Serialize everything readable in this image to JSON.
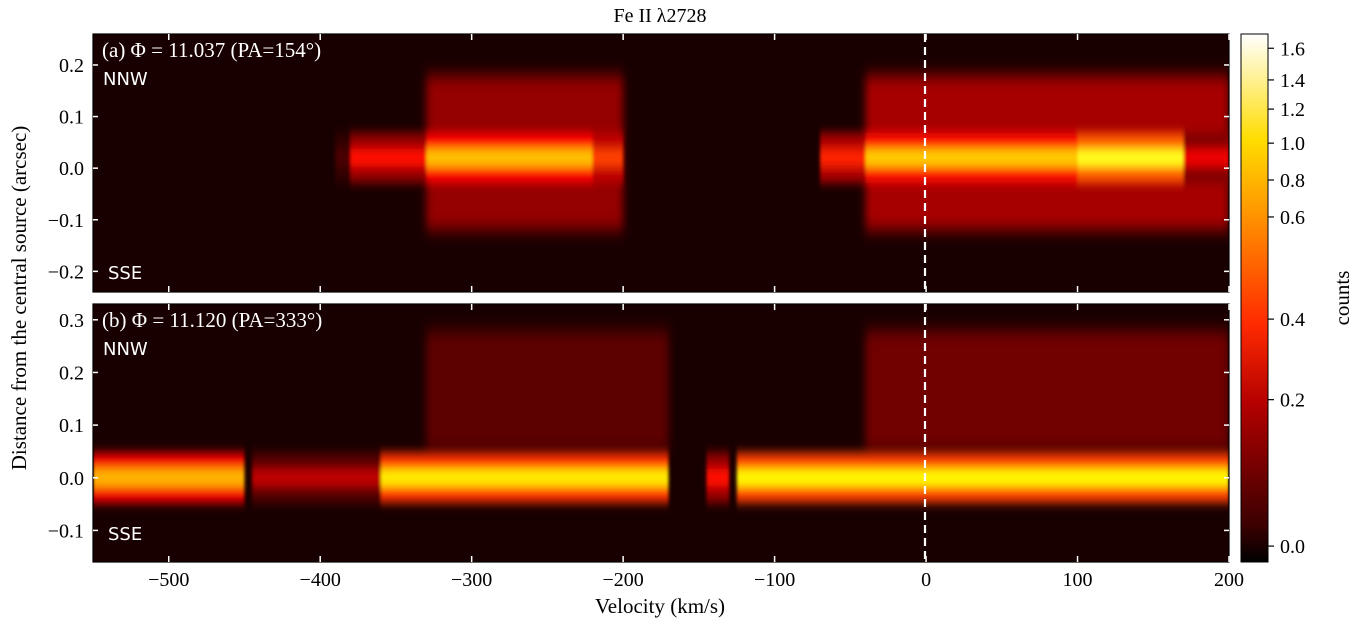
{
  "chart_data": {
    "type": "heatmap",
    "title": "Fe II λ2728",
    "xlabel": "Velocity (km/s)",
    "ylabel": "Distance from the central source (arcsec)",
    "colorbar_label": "counts",
    "colormap": "hot",
    "colorbar_ticks": [
      "0.0",
      "0.2",
      "0.4",
      "0.6",
      "0.8",
      "1.0",
      "1.2",
      "1.4",
      "1.6"
    ],
    "colorbar_tick_values": [
      0.0,
      0.2,
      0.4,
      0.6,
      0.8,
      1.0,
      1.2,
      1.4,
      1.6
    ],
    "colorbar_range": [
      -0.01,
      1.7
    ],
    "colorbar_scale": "nonlinear (stretched at low values)",
    "xlim": [
      -550,
      200
    ],
    "xticks": [
      -500,
      -400,
      -300,
      -200,
      -100,
      0,
      100,
      200
    ],
    "xtick_labels": [
      "−500",
      "−400",
      "−300",
      "−200",
      "−100",
      "0",
      "100",
      "200"
    ],
    "reference_line": {
      "x": 0,
      "style": "dashed",
      "color": "#ffffff"
    },
    "panels": [
      {
        "label": "(a) Φ = 11.037 (PA=154°)",
        "north_label": "NNW",
        "south_label": "SSE",
        "ylim": [
          -0.24,
          0.26
        ],
        "yticks": [
          -0.2,
          -0.1,
          0.0,
          0.1,
          0.2
        ],
        "ytick_labels": [
          "−0.2",
          "−0.1",
          "0.0",
          "0.1",
          "0.2"
        ],
        "emission": {
          "core": [
            {
              "v_range": [
                -390,
                -380
              ],
              "y": 0.02,
              "counts": 0.08
            },
            {
              "v_range": [
                -380,
                -330
              ],
              "y": 0.02,
              "counts": 0.35
            },
            {
              "v_range": [
                -330,
                -220
              ],
              "y": 0.02,
              "counts": 0.75
            },
            {
              "v_range": [
                -220,
                -200
              ],
              "y": 0.02,
              "counts": 0.45
            },
            {
              "v_range": [
                -70,
                -40
              ],
              "y": 0.02,
              "counts": 0.4
            },
            {
              "v_range": [
                -40,
                100
              ],
              "y": 0.02,
              "counts": 0.8
            },
            {
              "v_range": [
                100,
                170
              ],
              "y": 0.02,
              "counts": 1.1
            },
            {
              "v_range": [
                170,
                200
              ],
              "y": 0.02,
              "counts": 0.3
            }
          ],
          "halo": [
            {
              "v_range": [
                -330,
                -200
              ],
              "y_range": [
                -0.12,
                0.18
              ],
              "counts": 0.2
            },
            {
              "v_range": [
                -40,
                200
              ],
              "y_range": [
                -0.12,
                0.18
              ],
              "counts": 0.25
            }
          ]
        }
      },
      {
        "label": "(b) Φ = 11.120 (PA=333°)",
        "north_label": "NNW",
        "south_label": "SSE",
        "ylim": [
          -0.16,
          0.33
        ],
        "yticks": [
          -0.1,
          0.0,
          0.1,
          0.2,
          0.3
        ],
        "ytick_labels": [
          "−0.1",
          "0.0",
          "0.1",
          "0.2",
          "0.3"
        ],
        "emission": {
          "core": [
            {
              "v_range": [
                -550,
                -450
              ],
              "y": 0.0,
              "counts": 0.7
            },
            {
              "v_range": [
                -445,
                -360
              ],
              "y": 0.0,
              "counts": 0.2
            },
            {
              "v_range": [
                -360,
                -170
              ],
              "y": 0.0,
              "counts": 0.95
            },
            {
              "v_range": [
                -145,
                -130
              ],
              "y": 0.0,
              "counts": 0.35
            },
            {
              "v_range": [
                -125,
                200
              ],
              "y": 0.0,
              "counts": 1.0
            }
          ],
          "halo": [
            {
              "v_range": [
                -330,
                -170
              ],
              "y_range": [
                0.05,
                0.28
              ],
              "counts": 0.12
            },
            {
              "v_range": [
                -40,
                200
              ],
              "y_range": [
                0.05,
                0.28
              ],
              "counts": 0.15
            }
          ]
        }
      }
    ]
  }
}
